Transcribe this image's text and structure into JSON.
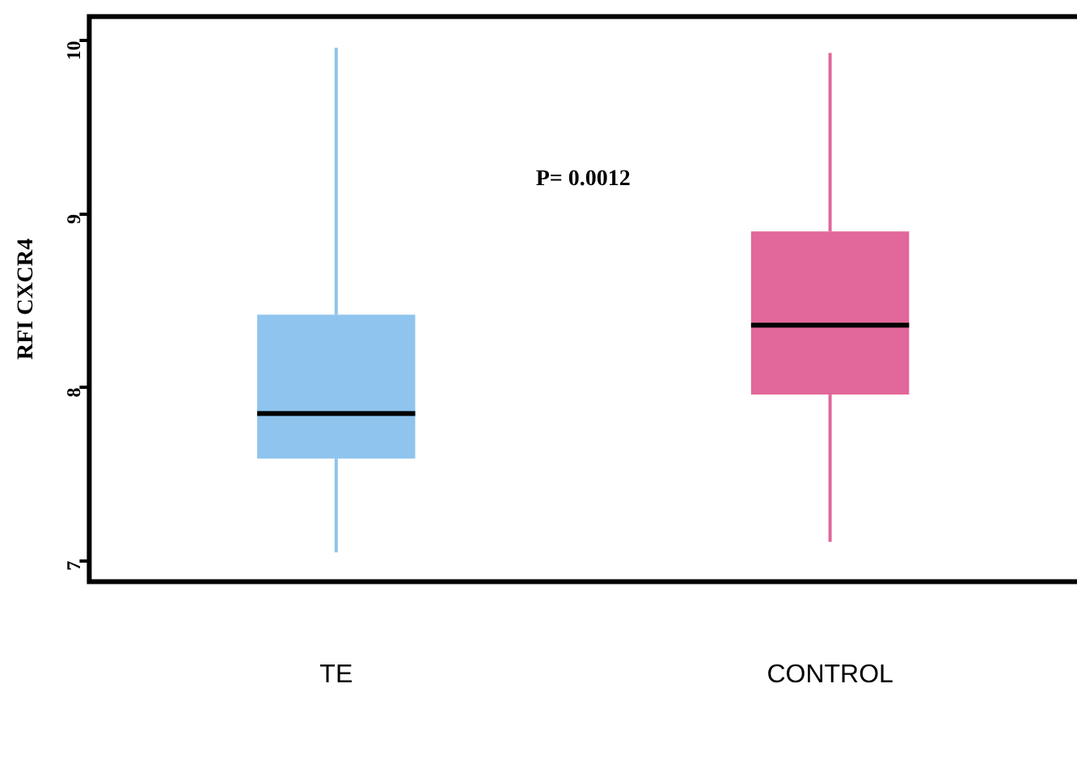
{
  "chart_data": {
    "type": "box",
    "ylabel": "RFI CXCR4",
    "categories": [
      "TE",
      "CONTROL"
    ],
    "colors": [
      "#8ec4ee",
      "#e2679a"
    ],
    "boxes": [
      {
        "low": 7.05,
        "q1": 7.59,
        "median": 7.85,
        "q3": 8.42,
        "high": 9.96
      },
      {
        "low": 7.11,
        "q1": 7.96,
        "median": 8.36,
        "q3": 8.9,
        "high": 9.93
      }
    ],
    "ylim": [
      6.88,
      10.14
    ],
    "yticks": [
      7,
      8,
      9,
      10
    ],
    "grid": false,
    "legend": false,
    "annotations": [
      "P= 0.0012"
    ]
  }
}
